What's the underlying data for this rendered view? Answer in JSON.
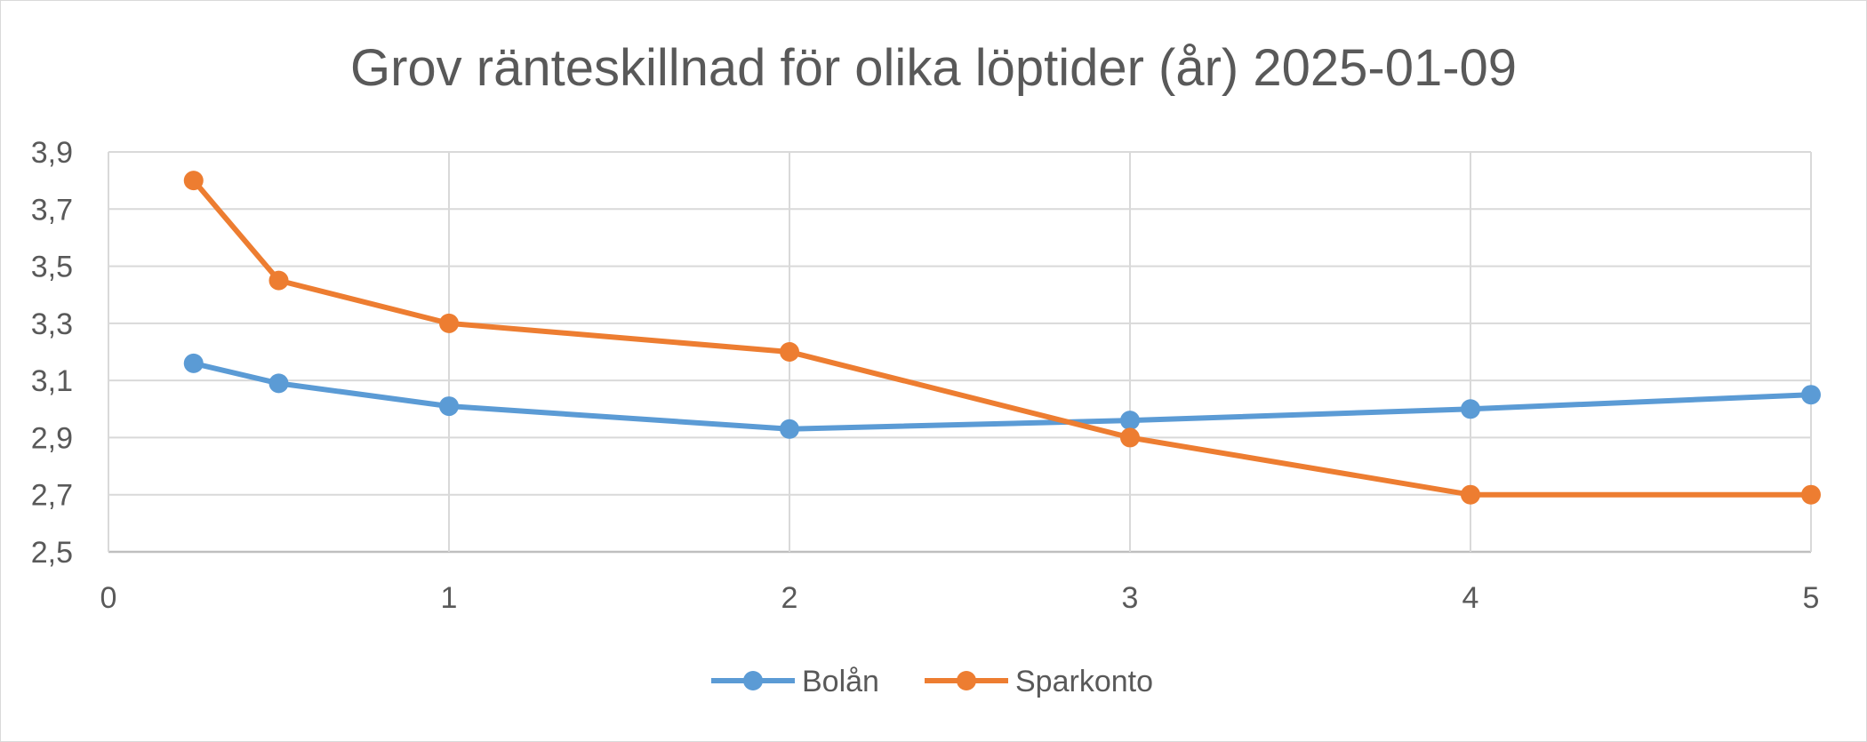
{
  "chart_data": {
    "type": "scatter",
    "title": "Grov ränteskillnad för olika löptider (år) 2025-01-09",
    "xlabel": "",
    "ylabel": "",
    "xlim": [
      0,
      5
    ],
    "ylim": [
      2.5,
      3.9
    ],
    "xticks": [
      0,
      1,
      2,
      3,
      4,
      5
    ],
    "xtick_labels": [
      "0",
      "1",
      "2",
      "3",
      "4",
      "5"
    ],
    "yticks": [
      2.5,
      2.7,
      2.9,
      3.1,
      3.3,
      3.5,
      3.7,
      3.9
    ],
    "ytick_labels": [
      "2,5",
      "2,7",
      "2,9",
      "3,1",
      "3,3",
      "3,5",
      "3,7",
      "3,9"
    ],
    "grid": true,
    "legend_position": "bottom",
    "series": [
      {
        "name": "Bolån",
        "color": "#5b9bd5",
        "x": [
          0.25,
          0.5,
          1,
          2,
          3,
          4,
          5
        ],
        "y": [
          3.16,
          3.09,
          3.01,
          2.93,
          2.96,
          3.0,
          3.05
        ]
      },
      {
        "name": "Sparkonto",
        "color": "#ed7d31",
        "x": [
          0.25,
          0.5,
          1,
          2,
          3,
          4,
          5
        ],
        "y": [
          3.8,
          3.45,
          3.3,
          3.2,
          2.9,
          2.7,
          2.7
        ]
      }
    ]
  }
}
